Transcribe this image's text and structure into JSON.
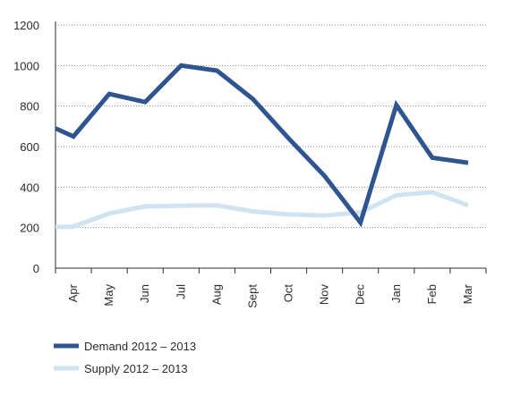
{
  "chart_data": {
    "type": "line",
    "categories": [
      "Apr",
      "May",
      "Jun",
      "Jul",
      "Aug",
      "Sept",
      "Oct",
      "Nov",
      "Dec",
      "Jan",
      "Feb",
      "Mar"
    ],
    "series": [
      {
        "name": "Demand 2012 – 2013",
        "color": "#2e5590",
        "points": [
          {
            "x": "Apr",
            "y": 650
          },
          {
            "x": "May",
            "y": 860
          },
          {
            "x": "Jun",
            "y": 820
          },
          {
            "x": "Jul",
            "y": 1000
          },
          {
            "x": "Aug",
            "y": 975
          },
          {
            "x": "Sept",
            "y": 835
          },
          {
            "x": "Oct",
            "y": 640
          },
          {
            "x": "Nov",
            "y": 455
          },
          {
            "x": "Dec",
            "y": 225
          },
          {
            "x": "Jan",
            "y": 805
          },
          {
            "x": "Feb",
            "y": 545
          },
          {
            "x": "Mar",
            "y": 520
          }
        ],
        "left_start_y": 690
      },
      {
        "name": "Supply 2012 – 2013",
        "color": "#cfe3f0",
        "points": [
          {
            "x": "Apr",
            "y": 205
          },
          {
            "x": "May",
            "y": 270
          },
          {
            "x": "Jun",
            "y": 305
          },
          {
            "x": "Jul",
            "y": 308
          },
          {
            "x": "Aug",
            "y": 310
          },
          {
            "x": "Sept",
            "y": 280
          },
          {
            "x": "Oct",
            "y": 265
          },
          {
            "x": "Nov",
            "y": 260
          },
          {
            "x": "Dec",
            "y": 275
          },
          {
            "x": "Jan",
            "y": 360
          },
          {
            "x": "Feb",
            "y": 375
          },
          {
            "x": "Mar",
            "y": 310
          }
        ],
        "left_start_y": 203
      }
    ],
    "y_ticks": [
      "0",
      "200",
      "400",
      "600",
      "800",
      "1000",
      "1200"
    ],
    "ylim": [
      0,
      1200
    ],
    "grid": true,
    "legend_position": "bottom-left"
  }
}
